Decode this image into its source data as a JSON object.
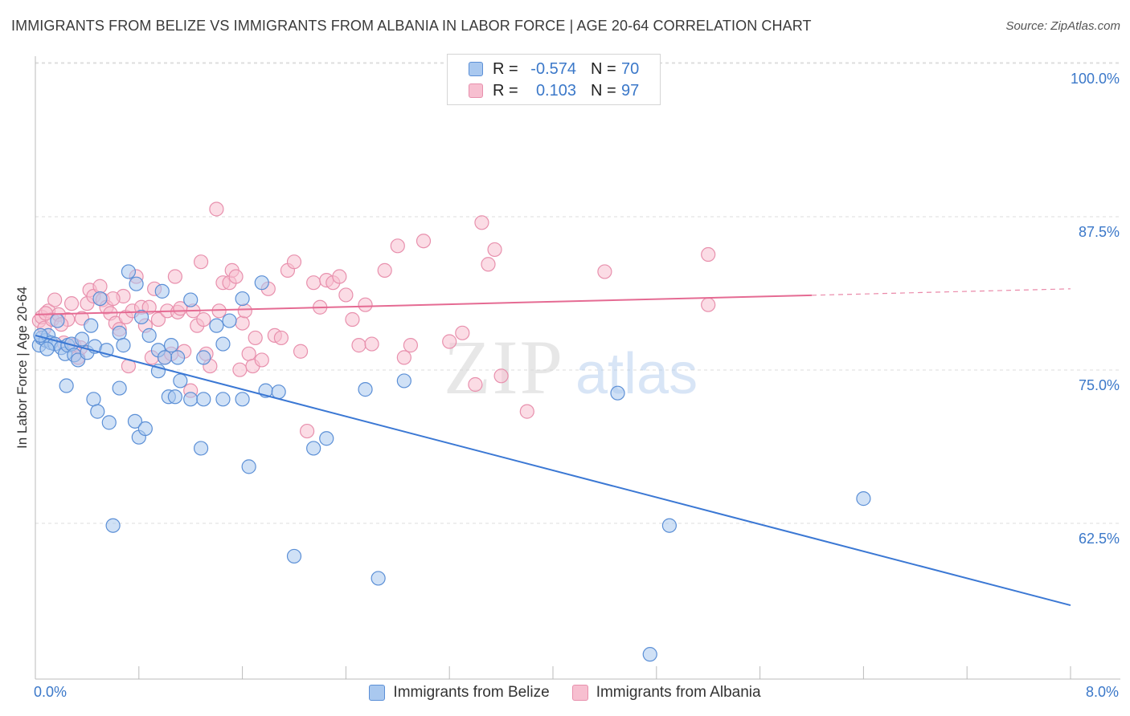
{
  "header": {
    "title": "IMMIGRANTS FROM BELIZE VS IMMIGRANTS FROM ALBANIA IN LABOR FORCE | AGE 20-64 CORRELATION CHART",
    "source": "Source: ZipAtlas.com"
  },
  "legend": {
    "rows": [
      {
        "r_label": "R =",
        "r_value": "-0.574",
        "n_label": "N =",
        "n_value": "70"
      },
      {
        "r_label": "R =",
        "r_value": "0.103",
        "n_label": "N =",
        "n_value": "97"
      }
    ]
  },
  "bottom_legend": {
    "belize": "Immigrants from Belize",
    "albania": "Immigrants from Albania"
  },
  "x_axis": {
    "min_label": "0.0%",
    "max_label": "8.0%"
  },
  "watermark": {
    "zip": "ZIP",
    "atlas": "atlas"
  },
  "colors": {
    "belize_fill": "#a9c8ef",
    "belize_stroke": "#5b8fd6",
    "belize_line": "#3b78d4",
    "albania_fill": "#f7bfd0",
    "albania_stroke": "#e890ad",
    "albania_line": "#e56b93",
    "axis_text": "#3b78c9",
    "grid": "#dddddd"
  },
  "chart_data": {
    "type": "scatter",
    "title": "IMMIGRANTS FROM BELIZE VS IMMIGRANTS FROM ALBANIA IN LABOR FORCE | AGE 20-64 CORRELATION CHART",
    "xlabel": "",
    "ylabel": "In Labor Force | Age 20-64",
    "xlim": [
      0,
      8
    ],
    "ylim": [
      50.5,
      102
    ],
    "y_ticks": [
      62.5,
      75.0,
      87.5,
      100.0
    ],
    "y_tick_labels": [
      "62.5%",
      "75.0%",
      "87.5%",
      "100.0%"
    ],
    "x_tick_labels": [
      "0.0%",
      "8.0%"
    ],
    "grid": true,
    "series": [
      {
        "name": "Immigrants from Belize",
        "r": -0.574,
        "n": 70,
        "trend": {
          "x": [
            0.0,
            8.0
          ],
          "y": [
            79.0,
            57.0
          ],
          "dashed_from": null
        },
        "points": [
          [
            0.03,
            78.2
          ],
          [
            0.05,
            78.8
          ],
          [
            0.08,
            78.6
          ],
          [
            0.1,
            79.0
          ],
          [
            0.12,
            78.4
          ],
          [
            0.15,
            78.3
          ],
          [
            0.17,
            80.2
          ],
          [
            0.2,
            78.0
          ],
          [
            0.23,
            77.5
          ],
          [
            0.25,
            78.2
          ],
          [
            0.28,
            78.3
          ],
          [
            0.3,
            77.4
          ],
          [
            0.33,
            77.0
          ],
          [
            0.36,
            78.7
          ],
          [
            0.4,
            77.6
          ],
          [
            0.43,
            79.8
          ],
          [
            0.46,
            78.1
          ],
          [
            0.5,
            82.0
          ],
          [
            0.55,
            77.8
          ],
          [
            0.65,
            79.2
          ],
          [
            0.68,
            78.2
          ],
          [
            0.72,
            84.2
          ],
          [
            0.78,
            83.2
          ],
          [
            0.82,
            80.5
          ],
          [
            0.88,
            79.0
          ],
          [
            0.95,
            77.8
          ],
          [
            0.98,
            82.6
          ],
          [
            1.05,
            78.2
          ],
          [
            1.1,
            77.2
          ],
          [
            1.2,
            81.9
          ],
          [
            1.3,
            77.2
          ],
          [
            1.4,
            79.8
          ],
          [
            1.45,
            78.3
          ],
          [
            1.5,
            80.2
          ],
          [
            1.6,
            82.0
          ],
          [
            1.75,
            83.3
          ],
          [
            0.24,
            74.9
          ],
          [
            0.45,
            73.8
          ],
          [
            0.48,
            72.8
          ],
          [
            0.57,
            71.9
          ],
          [
            0.65,
            74.7
          ],
          [
            0.77,
            72.0
          ],
          [
            0.8,
            70.7
          ],
          [
            0.85,
            71.4
          ],
          [
            0.95,
            76.1
          ],
          [
            1.0,
            77.2
          ],
          [
            1.03,
            74.0
          ],
          [
            1.08,
            74.0
          ],
          [
            1.12,
            75.3
          ],
          [
            1.2,
            73.8
          ],
          [
            1.3,
            73.8
          ],
          [
            1.45,
            73.8
          ],
          [
            1.6,
            73.8
          ],
          [
            1.78,
            74.5
          ],
          [
            1.28,
            69.8
          ],
          [
            1.65,
            68.3
          ],
          [
            2.15,
            69.8
          ],
          [
            2.25,
            70.6
          ],
          [
            1.88,
            74.4
          ],
          [
            2.55,
            74.6
          ],
          [
            2.85,
            75.3
          ],
          [
            4.5,
            74.3
          ],
          [
            0.6,
            63.5
          ],
          [
            2.0,
            61.0
          ],
          [
            2.65,
            59.2
          ],
          [
            4.9,
            63.5
          ],
          [
            6.4,
            65.7
          ],
          [
            4.75,
            53.0
          ],
          [
            0.04,
            79.0
          ],
          [
            0.09,
            77.9
          ]
        ]
      },
      {
        "name": "Immigrants from Albania",
        "r": 0.103,
        "n": 97,
        "trend": {
          "x": [
            0.0,
            8.0
          ],
          "y": [
            80.7,
            82.8
          ],
          "dashed_from": 6.0
        },
        "points": [
          [
            0.03,
            80.2
          ],
          [
            0.05,
            80.5
          ],
          [
            0.07,
            79.6
          ],
          [
            0.1,
            81.0
          ],
          [
            0.13,
            80.3
          ],
          [
            0.15,
            81.9
          ],
          [
            0.18,
            80.7
          ],
          [
            0.22,
            78.4
          ],
          [
            0.25,
            80.3
          ],
          [
            0.28,
            81.6
          ],
          [
            0.3,
            78.2
          ],
          [
            0.33,
            77.2
          ],
          [
            0.36,
            80.4
          ],
          [
            0.4,
            81.6
          ],
          [
            0.42,
            82.7
          ],
          [
            0.45,
            82.2
          ],
          [
            0.5,
            83.0
          ],
          [
            0.52,
            81.9
          ],
          [
            0.55,
            81.3
          ],
          [
            0.58,
            80.8
          ],
          [
            0.62,
            80.0
          ],
          [
            0.65,
            79.5
          ],
          [
            0.68,
            82.2
          ],
          [
            0.7,
            80.5
          ],
          [
            0.72,
            76.5
          ],
          [
            0.75,
            81.0
          ],
          [
            0.78,
            83.8
          ],
          [
            0.82,
            81.3
          ],
          [
            0.85,
            79.8
          ],
          [
            0.88,
            81.3
          ],
          [
            0.9,
            77.2
          ],
          [
            0.92,
            82.8
          ],
          [
            0.95,
            80.3
          ],
          [
            1.0,
            77.2
          ],
          [
            1.02,
            81.0
          ],
          [
            1.05,
            77.5
          ],
          [
            1.08,
            83.8
          ],
          [
            1.1,
            80.9
          ],
          [
            1.12,
            81.2
          ],
          [
            1.15,
            77.7
          ],
          [
            1.2,
            74.5
          ],
          [
            1.22,
            81.0
          ],
          [
            1.25,
            79.8
          ],
          [
            1.28,
            85.0
          ],
          [
            1.3,
            80.3
          ],
          [
            1.32,
            77.5
          ],
          [
            1.35,
            76.5
          ],
          [
            1.4,
            89.3
          ],
          [
            1.42,
            81.0
          ],
          [
            1.45,
            83.3
          ],
          [
            1.5,
            83.3
          ],
          [
            1.52,
            84.3
          ],
          [
            1.55,
            83.8
          ],
          [
            1.58,
            76.2
          ],
          [
            1.6,
            80.0
          ],
          [
            1.62,
            81.0
          ],
          [
            1.65,
            77.5
          ],
          [
            1.68,
            76.5
          ],
          [
            1.7,
            78.8
          ],
          [
            1.75,
            77.0
          ],
          [
            1.8,
            82.8
          ],
          [
            1.85,
            79.0
          ],
          [
            1.9,
            78.8
          ],
          [
            1.95,
            84.3
          ],
          [
            2.0,
            85.0
          ],
          [
            2.05,
            77.7
          ],
          [
            2.1,
            71.2
          ],
          [
            2.15,
            83.3
          ],
          [
            2.2,
            81.3
          ],
          [
            2.25,
            83.5
          ],
          [
            2.3,
            83.3
          ],
          [
            2.35,
            83.8
          ],
          [
            2.4,
            82.3
          ],
          [
            2.45,
            80.3
          ],
          [
            2.5,
            78.2
          ],
          [
            2.55,
            81.5
          ],
          [
            2.6,
            78.3
          ],
          [
            2.7,
            84.3
          ],
          [
            2.8,
            86.3
          ],
          [
            2.85,
            77.2
          ],
          [
            2.9,
            78.2
          ],
          [
            3.0,
            86.7
          ],
          [
            3.2,
            78.5
          ],
          [
            3.3,
            79.2
          ],
          [
            3.4,
            75.0
          ],
          [
            3.45,
            88.2
          ],
          [
            3.5,
            84.8
          ],
          [
            3.55,
            86.0
          ],
          [
            3.6,
            75.7
          ],
          [
            3.8,
            72.8
          ],
          [
            4.4,
            84.2
          ],
          [
            5.2,
            81.5
          ],
          [
            5.2,
            85.6
          ],
          [
            0.08,
            80.8
          ],
          [
            0.2,
            79.9
          ],
          [
            0.35,
            78.0
          ],
          [
            0.6,
            82.0
          ]
        ]
      }
    ]
  }
}
